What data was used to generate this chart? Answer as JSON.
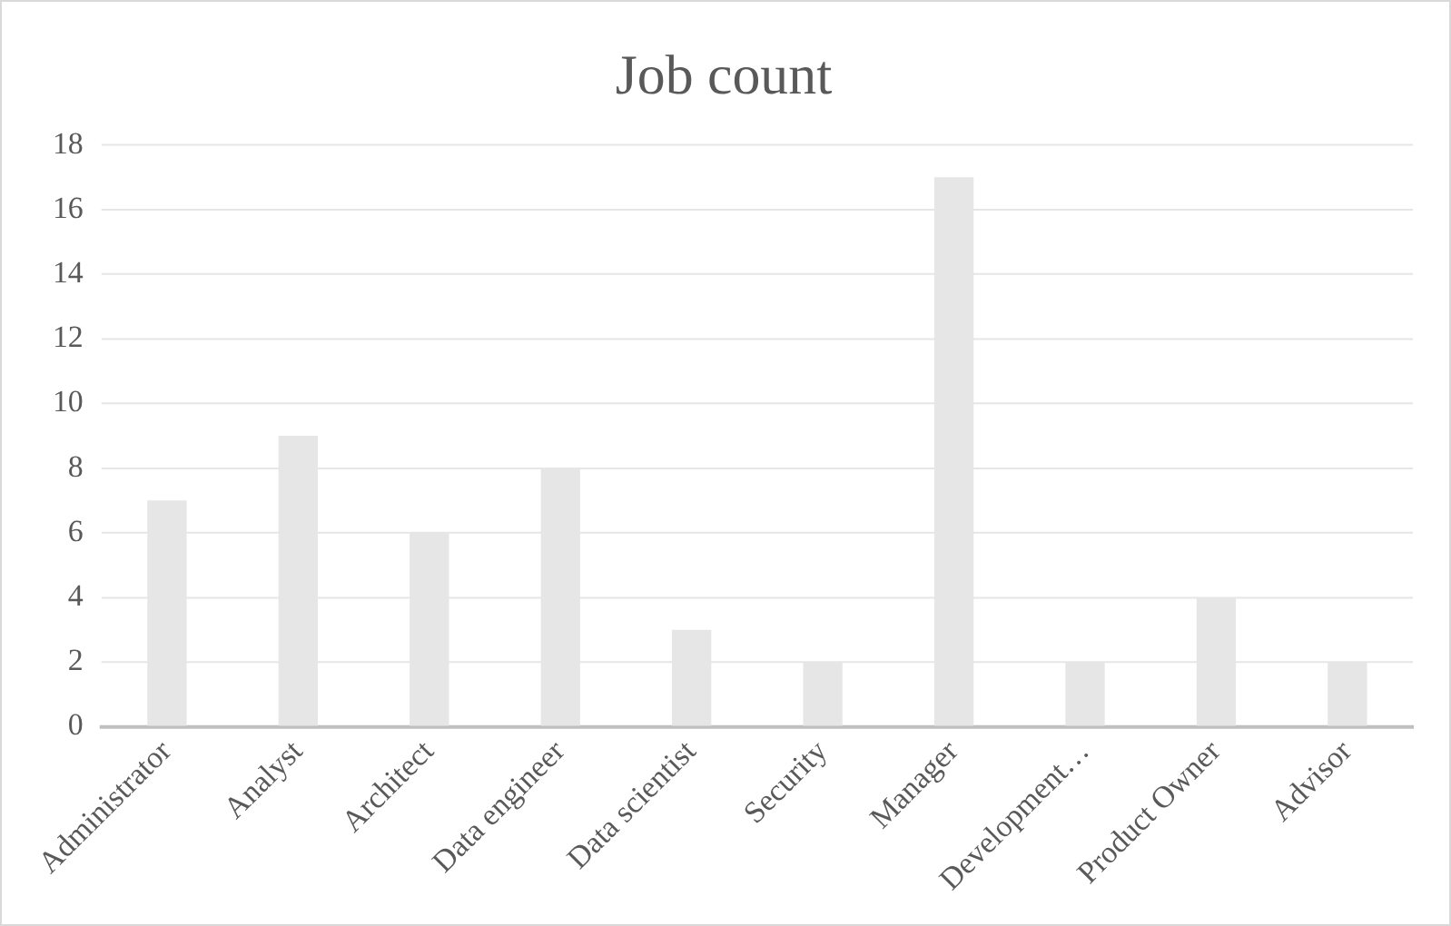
{
  "chart_data": {
    "type": "bar",
    "title": "Job count",
    "categories": [
      "Administrator",
      "Analyst",
      "Architect",
      "Data engineer",
      "Data scientist",
      "Security",
      "Manager",
      "Development…",
      "Product Owner",
      "Advisor"
    ],
    "values": [
      7,
      9,
      6,
      8,
      3,
      2,
      17,
      2,
      4,
      2
    ],
    "color": "#e7e6e6",
    "ylim": [
      0,
      18
    ],
    "yticks": [
      0,
      2,
      4,
      6,
      8,
      10,
      12,
      14,
      16,
      18
    ],
    "grid": "y",
    "legend": false
  }
}
